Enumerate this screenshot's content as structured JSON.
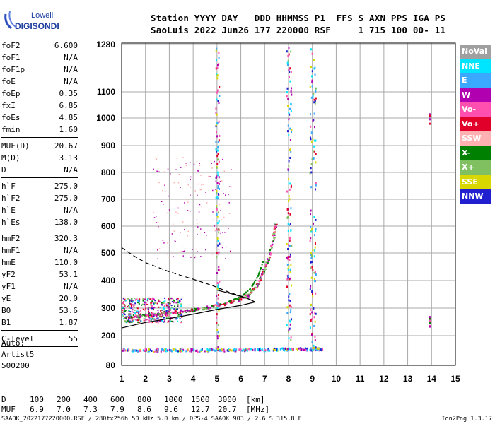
{
  "logo": {
    "line1": "Lowell",
    "line2": "DIGISONDE"
  },
  "header": {
    "line1": "Station YYYY DAY   DDD HHMMSS P1  FFS S AXN PPS IGA PS",
    "line2": "SaoLuis 2022 Jun26 177 220000 RSF     1 715 100 00- 11"
  },
  "params": [
    {
      "name": "foF2",
      "value": "6.600"
    },
    {
      "name": "foF1",
      "value": "N/A"
    },
    {
      "name": "foF1p",
      "value": "N/A"
    },
    {
      "name": "foE",
      "value": "N/A"
    },
    {
      "name": "foEp",
      "value": "0.35"
    },
    {
      "name": "fxI",
      "value": "6.85"
    },
    {
      "name": "foEs",
      "value": "4.85"
    },
    {
      "name": "fmin",
      "value": "1.60"
    },
    {
      "sep": true
    },
    {
      "name": "MUF(D)",
      "value": "20.67"
    },
    {
      "name": "M(D)",
      "value": "3.13"
    },
    {
      "name": "D",
      "value": "N/A"
    },
    {
      "sep": true
    },
    {
      "name": "h`F",
      "value": "275.0"
    },
    {
      "name": "h`F2",
      "value": "275.0"
    },
    {
      "name": "h`E",
      "value": "N/A"
    },
    {
      "name": "h`Es",
      "value": "138.0"
    },
    {
      "sep": true
    },
    {
      "name": "hmF2",
      "value": "320.3"
    },
    {
      "name": "hmF1",
      "value": "N/A"
    },
    {
      "name": "hmE",
      "value": "110.0"
    },
    {
      "name": "yF2",
      "value": "53.1"
    },
    {
      "name": "yF1",
      "value": "N/A"
    },
    {
      "name": "yE",
      "value": "20.0"
    },
    {
      "name": "B0",
      "value": "53.6"
    },
    {
      "name": "B1",
      "value": "1.87"
    },
    {
      "sep": true
    },
    {
      "name": "C-level",
      "value": "55"
    },
    {
      "sep": true
    }
  ],
  "auto": {
    "line1": "Auto:",
    "line2": "Artist5",
    "line3": "500200"
  },
  "legend": [
    {
      "label": "NoVal",
      "color": "#a0a0a0"
    },
    {
      "label": "NNE",
      "color": "#00e5ff"
    },
    {
      "label": "E",
      "color": "#3aa8ff"
    },
    {
      "label": "W",
      "color": "#b000b0"
    },
    {
      "label": "Vo-",
      "color": "#ff50b0"
    },
    {
      "label": "Vo+",
      "color": "#e0002a"
    },
    {
      "label": "SSW",
      "color": "#ffb0b0"
    },
    {
      "label": "X-",
      "color": "#008000"
    },
    {
      "label": "X+",
      "color": "#80c060"
    },
    {
      "label": "SSE",
      "color": "#d8d800"
    },
    {
      "label": "NNW",
      "color": "#2020d0"
    }
  ],
  "dtable": {
    "d_label": "D",
    "d_values": [
      "100",
      "200",
      "400",
      "600",
      "800",
      "1000",
      "1500",
      "3000"
    ],
    "d_unit": "[km]",
    "muf_label": "MUF",
    "muf_values": [
      "6.9",
      "7.0",
      "7.3",
      "7.9",
      "8.6",
      "9.6",
      "12.7",
      "20.7"
    ],
    "muf_unit": "[MHz]"
  },
  "footer": {
    "info": "SAAOK_2022177220000.RSF / 280fx256h 50 kHz 5.0 km / DPS-4 SAAOK 903 / 2.6 S 315.8 E",
    "version": "Ion2Png 1.3.17"
  },
  "chart_data": {
    "type": "scatter",
    "xlabel": "",
    "ylabel": "",
    "xlim": [
      1,
      15
    ],
    "ylim": [
      80,
      1280
    ],
    "y_scale": "piecewise-linear (80-300 stretched)",
    "x_ticks": [
      1,
      2,
      3,
      4,
      5,
      6,
      7,
      8,
      9,
      10,
      11,
      12,
      13,
      14,
      15
    ],
    "y_ticks": [
      80,
      200,
      300,
      400,
      500,
      600,
      700,
      800,
      900,
      1000,
      1100,
      1280
    ],
    "grid": true,
    "legend_position": "right",
    "profile_solid": [
      [
        1.0,
        228
      ],
      [
        2.0,
        248
      ],
      [
        3.0,
        262
      ],
      [
        4.0,
        278
      ],
      [
        5.0,
        295
      ],
      [
        6.0,
        310
      ],
      [
        6.6,
        322
      ],
      [
        6.3,
        335
      ],
      [
        5.6,
        352
      ],
      [
        5.0,
        365
      ]
    ],
    "profile_dashed": [
      [
        1.0,
        520
      ],
      [
        1.5,
        490
      ],
      [
        2.0,
        465
      ],
      [
        3.0,
        432
      ],
      [
        4.0,
        405
      ],
      [
        4.8,
        382
      ],
      [
        5.5,
        358
      ],
      [
        6.2,
        338
      ],
      [
        6.6,
        322
      ]
    ],
    "trace_ordinary": [
      [
        1.1,
        268
      ],
      [
        1.5,
        272
      ],
      [
        2.0,
        276
      ],
      [
        2.5,
        280
      ],
      [
        3.0,
        286
      ],
      [
        3.5,
        290
      ],
      [
        4.0,
        296
      ],
      [
        4.5,
        303
      ],
      [
        5.0,
        312
      ],
      [
        5.5,
        322
      ],
      [
        6.0,
        336
      ],
      [
        6.3,
        350
      ],
      [
        6.6,
        378
      ],
      [
        6.8,
        410
      ],
      [
        7.0,
        450
      ],
      [
        7.2,
        500
      ],
      [
        7.35,
        560
      ],
      [
        7.45,
        610
      ]
    ],
    "trace_extra": [
      [
        5.5,
        328
      ],
      [
        6.0,
        345
      ],
      [
        6.4,
        375
      ],
      [
        6.7,
        420
      ],
      [
        6.9,
        470
      ]
    ],
    "es_layer": [
      [
        1.0,
        145
      ],
      [
        2.0,
        145
      ],
      [
        3.0,
        145
      ],
      [
        4.0,
        145
      ],
      [
        5.0,
        146
      ],
      [
        6.0,
        147
      ],
      [
        7.0,
        148
      ],
      [
        8.0,
        149
      ],
      [
        9.0,
        149
      ],
      [
        9.4,
        148
      ]
    ]
  }
}
